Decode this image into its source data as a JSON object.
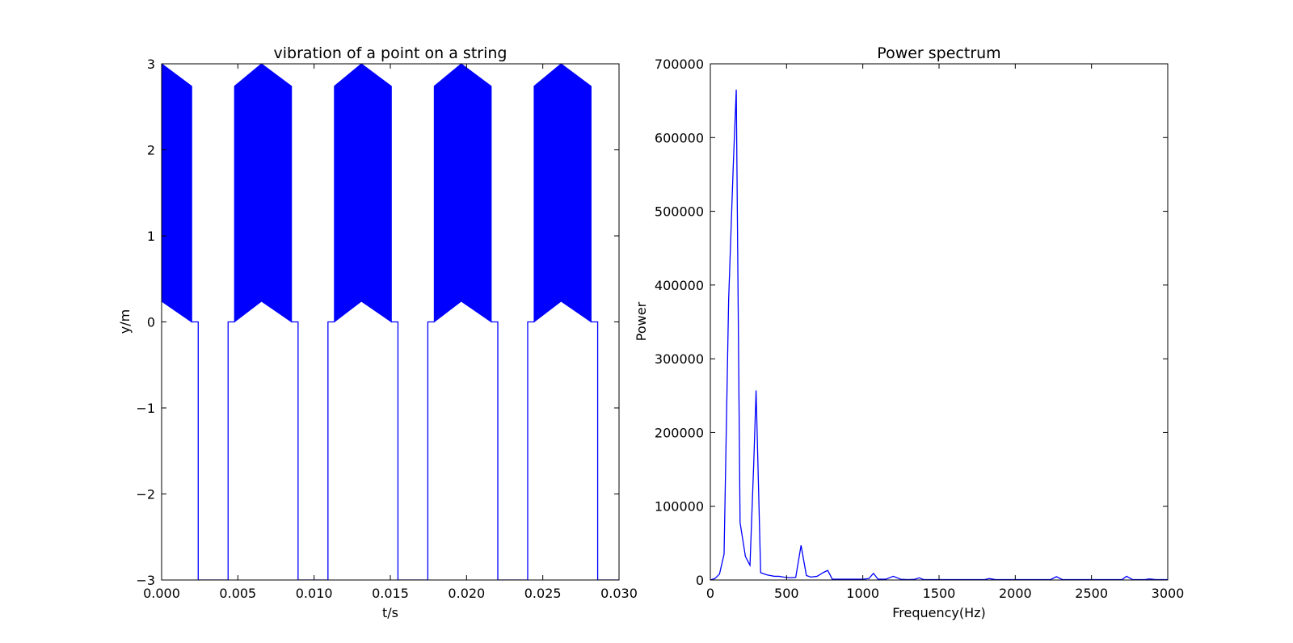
{
  "chart_data": [
    {
      "type": "line",
      "title": "vibration of a point on a string",
      "xlabel": "t/s",
      "ylabel": "y/m",
      "xlim": [
        0,
        0.03
      ],
      "ylim": [
        -3,
        3
      ],
      "x_ticks": [
        0.0,
        0.005,
        0.01,
        0.015,
        0.02,
        0.025,
        0.03
      ],
      "x_tick_labels": [
        "0.000",
        "0.005",
        "0.010",
        "0.015",
        "0.020",
        "0.025",
        "0.030"
      ],
      "y_ticks": [
        -3,
        -2,
        -1,
        0,
        1,
        2,
        3
      ],
      "y_tick_labels": [
        "−3",
        "−2",
        "−1",
        "0",
        "1",
        "2",
        "3"
      ],
      "color": "#0000ff",
      "series": [
        {
          "period": 0.00655,
          "peak_value": 3.0,
          "plateau_value": 2.74,
          "lower_envelope_peak": 0.24,
          "baseline_value": 0.0,
          "trough_value": -3.0,
          "segments": {
            "band_start": [
              0.0,
              0.00197
            ],
            "trough": [
              0.0024,
              0.00436
            ],
            "band_rise": [
              0.00478,
              0.00655
            ],
            "band_fall": [
              0.00655,
              0.00852
            ]
          }
        }
      ],
      "grid": false,
      "legend": "none"
    },
    {
      "type": "line",
      "title": "Power spectrum",
      "xlabel": "Frequency(Hz)",
      "ylabel": "Power",
      "xlim": [
        0,
        3000
      ],
      "ylim": [
        0,
        700000
      ],
      "x_ticks": [
        0,
        500,
        1000,
        1500,
        2000,
        2500,
        3000
      ],
      "x_tick_labels": [
        "0",
        "500",
        "1000",
        "1500",
        "2000",
        "2500",
        "3000"
      ],
      "y_ticks": [
        0,
        100000,
        200000,
        300000,
        400000,
        500000,
        600000,
        700000
      ],
      "y_tick_labels": [
        "0",
        "100000",
        "200000",
        "300000",
        "400000",
        "500000",
        "600000",
        "700000"
      ],
      "color": "#0000ff",
      "series": [
        {
          "x": [
            0,
            30,
            60,
            90,
            120,
            150,
            170,
            195,
            230,
            260,
            285,
            300,
            330,
            370,
            420,
            450,
            480,
            520,
            560,
            595,
            630,
            660,
            700,
            740,
            770,
            800,
            850,
            900,
            950,
            1000,
            1040,
            1070,
            1100,
            1150,
            1200,
            1250,
            1300,
            1340,
            1370,
            1400,
            1450,
            1500,
            1600,
            1700,
            1800,
            1830,
            1870,
            1950,
            2050,
            2150,
            2230,
            2270,
            2310,
            2400,
            2450,
            2500,
            2600,
            2700,
            2730,
            2770,
            2850,
            2880,
            2920,
            3000
          ],
          "values": [
            0,
            2000,
            8000,
            35000,
            380000,
            560000,
            665000,
            78000,
            32000,
            20000,
            160000,
            257000,
            10000,
            7000,
            5000,
            5000,
            4000,
            3000,
            3500,
            47000,
            6000,
            4000,
            5000,
            10000,
            13000,
            1000,
            1000,
            1000,
            1000,
            1000,
            2000,
            9000,
            1000,
            1000,
            5000,
            1000,
            500,
            1000,
            3000,
            500,
            500,
            500,
            500,
            500,
            500,
            2000,
            500,
            500,
            500,
            500,
            500,
            4500,
            500,
            500,
            500,
            500,
            500,
            500,
            5000,
            500,
            500,
            1500,
            500,
            500
          ]
        }
      ],
      "grid": false,
      "legend": "none"
    }
  ]
}
